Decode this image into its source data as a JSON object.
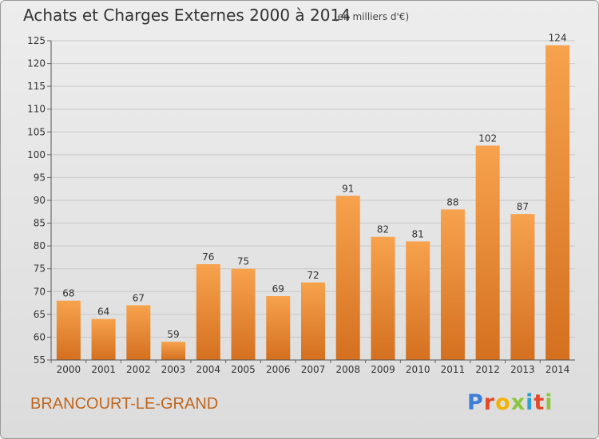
{
  "header": {
    "title": "Achats et Charges Externes 2000 à 2014",
    "unit": "(en milliers d'€)"
  },
  "footer": {
    "place": "BRANCOURT-LE-GRAND",
    "logo_text": "Proxiti"
  },
  "colors": {
    "bar_top": "#f7a24d",
    "bar_bottom": "#d4701f",
    "place": "#c0651c",
    "logo": [
      "#3b7fd6",
      "#e44a2a",
      "#f2b400",
      "#8cc63f",
      "#2a9fd6",
      "#e44a2a",
      "#8cc63f"
    ]
  },
  "chart_data": {
    "type": "bar",
    "title": "Achats et Charges Externes 2000 à 2014",
    "subtitle": "(en milliers d'€)",
    "categories": [
      "2000",
      "2001",
      "2002",
      "2003",
      "2004",
      "2005",
      "2006",
      "2007",
      "2008",
      "2009",
      "2010",
      "2011",
      "2012",
      "2013",
      "2014"
    ],
    "values": [
      68,
      64,
      67,
      59,
      76,
      75,
      69,
      72,
      91,
      82,
      81,
      88,
      102,
      87,
      124
    ],
    "ylim": [
      55,
      125
    ],
    "yticks": [
      55,
      60,
      65,
      70,
      75,
      80,
      85,
      90,
      95,
      100,
      105,
      110,
      115,
      120,
      125
    ],
    "grid": true
  }
}
